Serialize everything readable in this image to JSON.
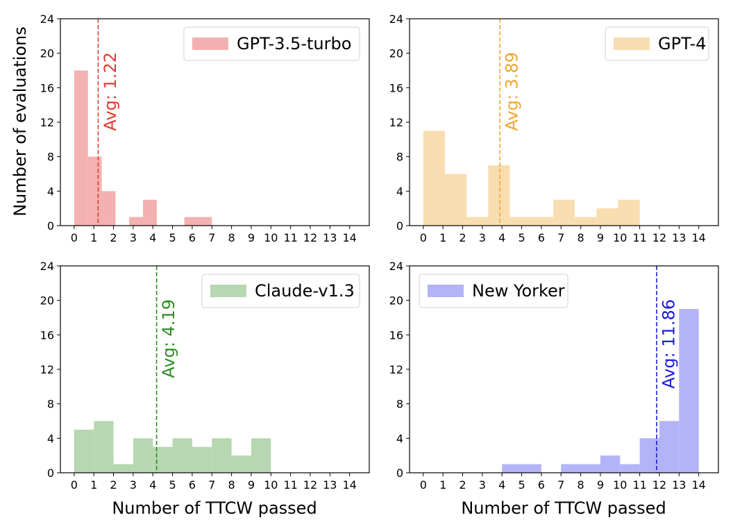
{
  "figure": {
    "ylabel": "Number of evaluations",
    "xlabel": "Number of TTCW passed"
  },
  "chart_data": [
    {
      "type": "bar",
      "series": [
        {
          "name": "GPT-3.5-turbo",
          "color": "#f4b1b1",
          "bins": [
            {
              "x0": 0,
              "x1": 0.7,
              "count": 18
            },
            {
              "x0": 0.7,
              "x1": 1.4,
              "count": 8
            },
            {
              "x0": 1.4,
              "x1": 2.1,
              "count": 4
            },
            {
              "x0": 2.1,
              "x1": 2.8,
              "count": 0
            },
            {
              "x0": 2.8,
              "x1": 3.5,
              "count": 1
            },
            {
              "x0": 3.5,
              "x1": 4.2,
              "count": 3
            },
            {
              "x0": 4.2,
              "x1": 4.9,
              "count": 0
            },
            {
              "x0": 4.9,
              "x1": 5.6,
              "count": 0
            },
            {
              "x0": 5.6,
              "x1": 6.3,
              "count": 1
            },
            {
              "x0": 6.3,
              "x1": 7.0,
              "count": 1
            }
          ]
        }
      ],
      "avg": {
        "value": 1.22,
        "label": "Avg: 1.22",
        "color": "#e03b2f"
      },
      "legend": "top-right",
      "xlim": [
        -0.7,
        15.0
      ],
      "ylim": [
        0,
        24
      ],
      "xticks": [
        "0",
        "1",
        "2",
        "3",
        "4",
        "5",
        "6",
        "7",
        "8",
        "9",
        "10",
        "11",
        "12",
        "13",
        "14"
      ],
      "yticks": [
        "0",
        "4",
        "8",
        "12",
        "16",
        "20",
        "24"
      ]
    },
    {
      "type": "bar",
      "series": [
        {
          "name": "GPT-4",
          "color": "#f8ddb0",
          "bins": [
            {
              "x0": 0,
              "x1": 1.1,
              "count": 11
            },
            {
              "x0": 1.1,
              "x1": 2.2,
              "count": 6
            },
            {
              "x0": 2.2,
              "x1": 3.3,
              "count": 1
            },
            {
              "x0": 3.3,
              "x1": 4.4,
              "count": 7
            },
            {
              "x0": 4.4,
              "x1": 5.5,
              "count": 1
            },
            {
              "x0": 5.5,
              "x1": 6.6,
              "count": 1
            },
            {
              "x0": 6.6,
              "x1": 7.7,
              "count": 3
            },
            {
              "x0": 7.7,
              "x1": 8.8,
              "count": 1
            },
            {
              "x0": 8.8,
              "x1": 9.9,
              "count": 2
            },
            {
              "x0": 9.9,
              "x1": 11.0,
              "count": 3
            }
          ]
        }
      ],
      "avg": {
        "value": 3.89,
        "label": "Avg: 3.89",
        "color": "#f0a630"
      },
      "legend": "top-right",
      "xlim": [
        -0.7,
        15.0
      ],
      "ylim": [
        0,
        24
      ],
      "xticks": [
        "0",
        "1",
        "2",
        "3",
        "4",
        "5",
        "6",
        "7",
        "8",
        "9",
        "10",
        "11",
        "12",
        "13",
        "14"
      ],
      "yticks": [
        "0",
        "4",
        "8",
        "12",
        "16",
        "20",
        "24"
      ]
    },
    {
      "type": "bar",
      "series": [
        {
          "name": "Claude-v1.3",
          "color": "#b6d7b0",
          "bins": [
            {
              "x0": 0,
              "x1": 1.0,
              "count": 5
            },
            {
              "x0": 1.0,
              "x1": 2.0,
              "count": 6
            },
            {
              "x0": 2.0,
              "x1": 3.0,
              "count": 1
            },
            {
              "x0": 3.0,
              "x1": 4.0,
              "count": 4
            },
            {
              "x0": 4.0,
              "x1": 5.0,
              "count": 3
            },
            {
              "x0": 5.0,
              "x1": 6.0,
              "count": 4
            },
            {
              "x0": 6.0,
              "x1": 7.0,
              "count": 3
            },
            {
              "x0": 7.0,
              "x1": 8.0,
              "count": 4
            },
            {
              "x0": 8.0,
              "x1": 9.0,
              "count": 2
            },
            {
              "x0": 9.0,
              "x1": 10.0,
              "count": 4
            }
          ]
        }
      ],
      "avg": {
        "value": 4.19,
        "label": "Avg: 4.19",
        "color": "#2e8b22"
      },
      "legend": "top-right",
      "xlim": [
        -0.7,
        15.0
      ],
      "ylim": [
        0,
        24
      ],
      "xticks": [
        "0",
        "1",
        "2",
        "3",
        "4",
        "5",
        "6",
        "7",
        "8",
        "9",
        "10",
        "11",
        "12",
        "13",
        "14"
      ],
      "yticks": [
        "0",
        "4",
        "8",
        "12",
        "16",
        "20",
        "24"
      ]
    },
    {
      "type": "bar",
      "series": [
        {
          "name": "New Yorker",
          "color": "#b3b3f8",
          "bins": [
            {
              "x0": 4.0,
              "x1": 5.0,
              "count": 1
            },
            {
              "x0": 5.0,
              "x1": 6.0,
              "count": 1
            },
            {
              "x0": 6.0,
              "x1": 7.0,
              "count": 0
            },
            {
              "x0": 7.0,
              "x1": 8.0,
              "count": 1
            },
            {
              "x0": 8.0,
              "x1": 9.0,
              "count": 1
            },
            {
              "x0": 9.0,
              "x1": 10.0,
              "count": 2
            },
            {
              "x0": 10.0,
              "x1": 11.0,
              "count": 1
            },
            {
              "x0": 11.0,
              "x1": 12.0,
              "count": 4
            },
            {
              "x0": 12.0,
              "x1": 13.0,
              "count": 6
            },
            {
              "x0": 13.0,
              "x1": 14.0,
              "count": 19
            }
          ]
        }
      ],
      "avg": {
        "value": 11.86,
        "label": "Avg: 11.86",
        "color": "#1a1adb"
      },
      "legend": "top-left",
      "xlim": [
        -0.7,
        15.0
      ],
      "ylim": [
        0,
        24
      ],
      "xticks": [
        "0",
        "1",
        "2",
        "3",
        "4",
        "5",
        "6",
        "7",
        "8",
        "9",
        "10",
        "11",
        "12",
        "13",
        "14"
      ],
      "yticks": [
        "0",
        "4",
        "8",
        "12",
        "16",
        "20",
        "24"
      ]
    }
  ]
}
